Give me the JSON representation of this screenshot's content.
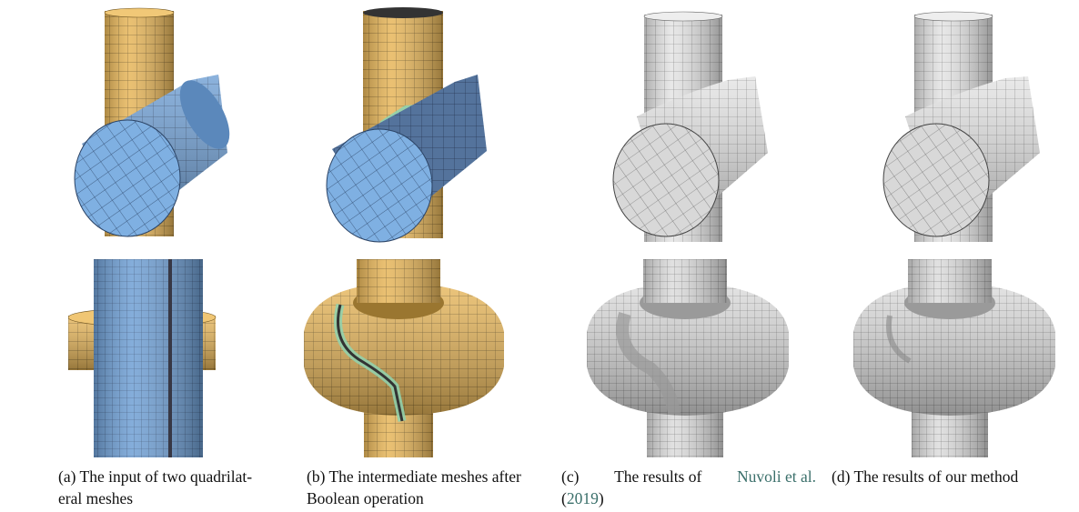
{
  "figure": {
    "captions": [
      {
        "label": "(a)",
        "lines": [
          "The input of two quadrilat-",
          "eral meshes"
        ]
      },
      {
        "label": "(b)",
        "lines": [
          "The intermediate meshes after",
          "Boolean operation"
        ]
      },
      {
        "label": "(c)",
        "pre": "The results of",
        "cite_name": "Nuvoli et al.",
        "cite_year": "2019",
        "open_paren": "(",
        "close_paren": ")"
      },
      {
        "label": "(d)",
        "lines": [
          "The results of our method"
        ]
      }
    ]
  },
  "colors": {
    "yellow_mesh": "#e7b65a",
    "blue_mesh": "#6f9fd4",
    "gray_mesh": "#e6e6e6",
    "seam_green": "#8fd3b0",
    "citation": "#3a6f6a"
  }
}
